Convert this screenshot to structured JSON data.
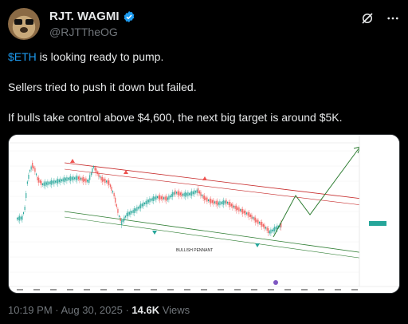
{
  "header": {
    "display_name": "RJT. WAGMI",
    "handle": "@RJTTheOG",
    "icons": [
      "verified-badge-icon",
      "grok-icon",
      "more-icon"
    ]
  },
  "tweet": {
    "cashtag": "$ETH",
    "line1_rest": " is looking ready to pump.",
    "line2": "Sellers tried to push it down but failed.",
    "line3": "If bulls take control above $4,600, the next big target is around $5K."
  },
  "chart": {
    "pattern_label": "BULLISH PENNANT",
    "colors": {
      "up": "#26a69a",
      "down": "#ef5350",
      "arrow": "#2e7d32",
      "upper_line": "#c62828",
      "lower_line": "#2e7d32"
    }
  },
  "footer": {
    "time": "10:19 PM",
    "separator": " · ",
    "date": "Aug 30, 2025",
    "views_count": "14.6K",
    "views_label": " Views"
  }
}
